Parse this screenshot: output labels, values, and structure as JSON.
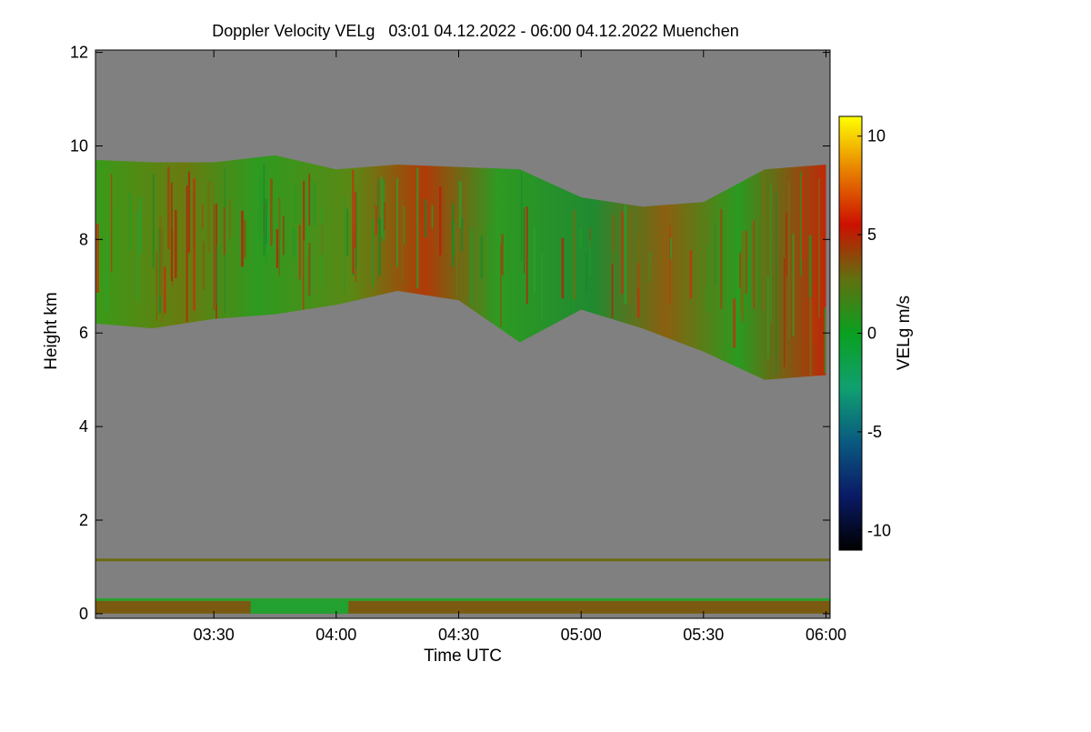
{
  "chart_data": {
    "type": "heatmap",
    "title": "Doppler Velocity VELg   03:01 04.12.2022 - 06:00 04.12.2022 Muenchen",
    "xlabel": "Time UTC",
    "ylabel": "Height km",
    "colorbar_label": "VELg m/s",
    "x_start": "03:01",
    "x_end": "06:00",
    "xlim": [
      3.0167,
      6.0167
    ],
    "ylim": [
      -0.1,
      12.05
    ],
    "x_ticks": [
      3.5,
      4.0,
      4.5,
      5.0,
      5.5,
      6.0
    ],
    "x_tick_labels": [
      "03:30",
      "04:00",
      "04:30",
      "05:00",
      "05:30",
      "06:00"
    ],
    "y_ticks": [
      0,
      2,
      4,
      6,
      8,
      10,
      12
    ],
    "y_tick_labels": [
      "0",
      "2",
      "4",
      "6",
      "8",
      "10",
      "12"
    ],
    "colorbar_range": [
      -11,
      11
    ],
    "colorbar_ticks": [
      10,
      5,
      0,
      -5,
      -10
    ],
    "colorbar_tick_labels": [
      "10",
      "5",
      "0",
      "-5",
      "-10"
    ],
    "colorscale": [
      "#000000",
      "#0a1a66",
      "#0a5a80",
      "#10a070",
      "#0aa020",
      "#607010",
      "#cc1000",
      "#e88000",
      "#ffff00"
    ],
    "background_color": "#808080",
    "cloud_layer": {
      "time": [
        3.02,
        3.25,
        3.5,
        3.75,
        4.0,
        4.25,
        4.5,
        4.75,
        5.0,
        5.25,
        5.5,
        5.75,
        6.0
      ],
      "top_km": [
        9.7,
        9.65,
        9.65,
        9.8,
        9.5,
        9.6,
        9.55,
        9.5,
        8.9,
        8.7,
        8.8,
        9.5,
        9.6
      ],
      "base_km": [
        6.2,
        6.1,
        6.3,
        6.4,
        6.6,
        6.9,
        6.7,
        5.8,
        6.5,
        6.1,
        5.6,
        5.0,
        5.1
      ]
    },
    "near_ground_band_km": [
      0.0,
      0.3
    ],
    "thin_layer_km": 1.15,
    "grid": false
  }
}
